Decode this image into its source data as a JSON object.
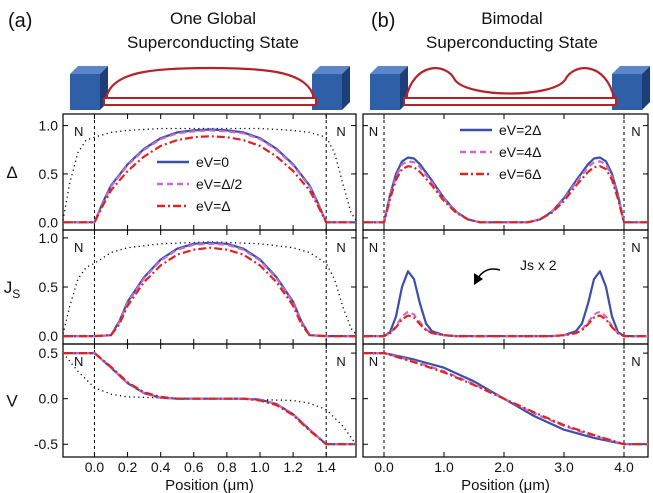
{
  "panels": [
    {
      "tag": "(a)",
      "title_lines": [
        "One Global",
        "Superconducting State"
      ],
      "xlabel": "Position (μm)",
      "xlim": [
        -0.19,
        1.58
      ],
      "xticks": [
        0.0,
        0.2,
        0.4,
        0.6,
        0.8,
        1.0,
        1.2,
        1.4
      ],
      "xtick_labels": [
        "0.0",
        "0.2",
        "0.4",
        "0.6",
        "0.8",
        "1.0",
        "1.2",
        "1.4"
      ],
      "region_label": "N",
      "annotation": ""
    },
    {
      "tag": "(b)",
      "title_lines": [
        "Bimodal",
        "Superconducting State"
      ],
      "xlabel": "Position (μm)",
      "xlim": [
        -0.35,
        4.4
      ],
      "xticks": [
        0.0,
        1.0,
        2.0,
        3.0,
        4.0
      ],
      "xtick_labels": [
        "0.0",
        "1.0",
        "2.0",
        "3.0",
        "4.0"
      ],
      "region_label": "N",
      "annotation": "Js x 2"
    }
  ],
  "rows": [
    {
      "ylabel": "Δ",
      "yticks": [
        0.0,
        0.5,
        1.0
      ],
      "ytick_labels": [
        "0.0",
        "0.5",
        "1.0"
      ],
      "ylim": [
        -0.08,
        1.12
      ]
    },
    {
      "ylabel": "J",
      "ylabel_sub": "S",
      "yticks": [
        0.0,
        0.5,
        1.0
      ],
      "ytick_labels": [
        "0.0",
        "0.5",
        "1.0"
      ],
      "ylim": [
        -0.08,
        1.08
      ]
    },
    {
      "ylabel": "V",
      "yticks": [
        -0.5,
        0.0,
        0.5
      ],
      "ytick_labels": [
        "-0.5",
        "0.0",
        "0.5"
      ],
      "ylim": [
        -0.64,
        0.6
      ]
    }
  ],
  "legends": [
    [
      "eV=0",
      "eV=Δ/2",
      "eV=Δ"
    ],
    [
      "eV=2Δ",
      "eV=4Δ",
      "eV=6Δ"
    ]
  ],
  "colors": {
    "solid": "#3a4fa8",
    "dashed": "#c76ad0",
    "dashdot": "#e0231e",
    "wire": "#b3242a",
    "lead": "#2f5fa6",
    "lead_dark": "#1d3f78"
  },
  "chart_data": [
    {
      "type": "line",
      "panel": "(a)",
      "row": "Δ",
      "series": [
        {
          "name": "eV=0",
          "x": [
            -0.19,
            0.0,
            0.05,
            0.1,
            0.2,
            0.3,
            0.4,
            0.5,
            0.6,
            0.7,
            0.8,
            0.9,
            1.0,
            1.1,
            1.2,
            1.3,
            1.35,
            1.4,
            1.58
          ],
          "values": [
            0.0,
            0.0,
            0.2,
            0.38,
            0.6,
            0.76,
            0.87,
            0.93,
            0.95,
            0.96,
            0.95,
            0.93,
            0.87,
            0.76,
            0.6,
            0.38,
            0.2,
            0.0,
            0.0
          ]
        },
        {
          "name": "eV=Δ/2",
          "x": [
            -0.19,
            0.0,
            0.05,
            0.1,
            0.2,
            0.3,
            0.4,
            0.5,
            0.6,
            0.7,
            0.8,
            0.9,
            1.0,
            1.1,
            1.2,
            1.3,
            1.35,
            1.4,
            1.58
          ],
          "values": [
            0.0,
            0.0,
            0.19,
            0.37,
            0.59,
            0.75,
            0.86,
            0.92,
            0.94,
            0.95,
            0.94,
            0.92,
            0.86,
            0.75,
            0.59,
            0.37,
            0.19,
            0.0,
            0.0
          ]
        },
        {
          "name": "eV=Δ",
          "x": [
            -0.19,
            0.0,
            0.05,
            0.1,
            0.2,
            0.3,
            0.4,
            0.5,
            0.6,
            0.7,
            0.8,
            0.9,
            1.0,
            1.1,
            1.2,
            1.3,
            1.35,
            1.4,
            1.58
          ],
          "values": [
            0.0,
            0.0,
            0.17,
            0.33,
            0.53,
            0.68,
            0.79,
            0.85,
            0.88,
            0.89,
            0.88,
            0.85,
            0.79,
            0.68,
            0.53,
            0.33,
            0.17,
            0.0,
            0.0
          ]
        },
        {
          "name": "",
          "x": [
            -0.19,
            -0.15,
            -0.1,
            -0.05,
            0.0,
            0.1,
            0.2,
            0.4,
            0.7,
            1.0,
            1.2,
            1.3,
            1.4,
            1.45,
            1.5,
            1.55,
            1.58
          ],
          "values": [
            0.02,
            0.4,
            0.72,
            0.85,
            0.88,
            0.93,
            0.95,
            0.97,
            0.97,
            0.97,
            0.95,
            0.93,
            0.88,
            0.72,
            0.4,
            0.1,
            0.02
          ]
        }
      ]
    },
    {
      "type": "line",
      "panel": "(a)",
      "row": "J_S",
      "series": [
        {
          "name": "eV=0",
          "x": [
            -0.19,
            0.0,
            0.1,
            0.15,
            0.2,
            0.3,
            0.4,
            0.5,
            0.6,
            0.7,
            0.8,
            0.9,
            1.0,
            1.1,
            1.2,
            1.25,
            1.3,
            1.4,
            1.58
          ],
          "values": [
            0.0,
            0.0,
            0.01,
            0.15,
            0.35,
            0.6,
            0.78,
            0.89,
            0.94,
            0.95,
            0.94,
            0.89,
            0.78,
            0.6,
            0.35,
            0.15,
            0.01,
            0.0,
            0.0
          ]
        },
        {
          "name": "eV=Δ/2",
          "x": [
            -0.19,
            0.0,
            0.1,
            0.15,
            0.2,
            0.3,
            0.4,
            0.5,
            0.6,
            0.7,
            0.8,
            0.9,
            1.0,
            1.1,
            1.2,
            1.25,
            1.3,
            1.4,
            1.58
          ],
          "values": [
            0.0,
            0.0,
            0.01,
            0.14,
            0.34,
            0.59,
            0.77,
            0.88,
            0.93,
            0.94,
            0.93,
            0.88,
            0.77,
            0.59,
            0.34,
            0.14,
            0.01,
            0.0,
            0.0
          ]
        },
        {
          "name": "eV=Δ",
          "x": [
            -0.19,
            0.0,
            0.1,
            0.15,
            0.2,
            0.3,
            0.4,
            0.5,
            0.6,
            0.7,
            0.8,
            0.9,
            1.0,
            1.1,
            1.2,
            1.25,
            1.3,
            1.4,
            1.58
          ],
          "values": [
            0.0,
            0.0,
            0.01,
            0.12,
            0.31,
            0.55,
            0.72,
            0.83,
            0.88,
            0.9,
            0.88,
            0.83,
            0.72,
            0.55,
            0.31,
            0.12,
            0.01,
            0.0,
            0.0
          ]
        },
        {
          "name": "",
          "x": [
            -0.19,
            -0.15,
            -0.1,
            -0.05,
            0.0,
            0.1,
            0.2,
            0.4,
            0.7,
            1.0,
            1.2,
            1.3,
            1.4,
            1.45,
            1.5,
            1.55,
            1.58
          ],
          "values": [
            0.02,
            0.3,
            0.58,
            0.7,
            0.74,
            0.85,
            0.9,
            0.94,
            0.96,
            0.94,
            0.9,
            0.85,
            0.74,
            0.58,
            0.3,
            0.08,
            0.02
          ]
        }
      ]
    },
    {
      "type": "line",
      "panel": "(a)",
      "row": "V",
      "series": [
        {
          "name": "eV=0",
          "x": [
            -0.19,
            0.0,
            0.1,
            0.2,
            0.3,
            0.4,
            0.5,
            0.6,
            0.7,
            0.8,
            0.9,
            1.0,
            1.1,
            1.2,
            1.3,
            1.4,
            1.58
          ],
          "values": [
            0.5,
            0.5,
            0.34,
            0.17,
            0.06,
            0.01,
            0.0,
            0.0,
            0.0,
            0.0,
            0.0,
            -0.01,
            -0.06,
            -0.17,
            -0.34,
            -0.5,
            -0.5
          ]
        },
        {
          "name": "eV=Δ/2",
          "x": [
            -0.19,
            0.0,
            0.1,
            0.2,
            0.3,
            0.4,
            0.5,
            0.6,
            0.7,
            0.8,
            0.9,
            1.0,
            1.1,
            1.2,
            1.3,
            1.4,
            1.58
          ],
          "values": [
            0.5,
            0.5,
            0.34,
            0.17,
            0.06,
            0.01,
            0.0,
            0.0,
            0.0,
            0.0,
            0.0,
            -0.01,
            -0.06,
            -0.17,
            -0.34,
            -0.5,
            -0.5
          ]
        },
        {
          "name": "eV=Δ",
          "x": [
            -0.19,
            0.0,
            0.1,
            0.2,
            0.3,
            0.4,
            0.5,
            0.6,
            0.7,
            0.8,
            0.9,
            1.0,
            1.1,
            1.2,
            1.3,
            1.4,
            1.58
          ],
          "values": [
            0.5,
            0.5,
            0.35,
            0.18,
            0.07,
            0.02,
            0.0,
            0.0,
            0.0,
            0.0,
            0.0,
            -0.02,
            -0.07,
            -0.18,
            -0.35,
            -0.5,
            -0.5
          ]
        },
        {
          "name": "",
          "x": [
            -0.19,
            -0.1,
            0.0,
            0.1,
            0.2,
            0.4,
            0.7,
            1.0,
            1.2,
            1.3,
            1.4,
            1.5,
            1.58
          ],
          "values": [
            0.5,
            0.3,
            0.12,
            0.05,
            0.02,
            0.01,
            0.0,
            -0.01,
            -0.02,
            -0.05,
            -0.12,
            -0.3,
            -0.5
          ]
        }
      ]
    },
    {
      "type": "line",
      "panel": "(b)",
      "row": "Δ",
      "series": [
        {
          "name": "eV=2Δ",
          "x": [
            -0.35,
            0.0,
            0.1,
            0.2,
            0.3,
            0.4,
            0.5,
            0.6,
            0.8,
            1.0,
            1.2,
            1.4,
            1.6,
            2.0,
            2.4,
            2.6,
            2.8,
            3.0,
            3.2,
            3.4,
            3.5,
            3.6,
            3.7,
            3.8,
            3.9,
            4.0,
            4.4
          ],
          "values": [
            0.0,
            0.0,
            0.28,
            0.5,
            0.63,
            0.67,
            0.66,
            0.6,
            0.43,
            0.25,
            0.11,
            0.03,
            0.0,
            0.0,
            0.0,
            0.03,
            0.11,
            0.25,
            0.43,
            0.6,
            0.66,
            0.67,
            0.63,
            0.5,
            0.28,
            0.0,
            0.0
          ]
        },
        {
          "name": "eV=4Δ",
          "x": [
            -0.35,
            0.0,
            0.1,
            0.2,
            0.3,
            0.4,
            0.5,
            0.6,
            0.8,
            1.0,
            1.2,
            1.4,
            1.6,
            2.0,
            2.4,
            2.6,
            2.8,
            3.0,
            3.2,
            3.4,
            3.5,
            3.6,
            3.7,
            3.8,
            3.9,
            4.0,
            4.4
          ],
          "values": [
            0.0,
            0.0,
            0.26,
            0.47,
            0.6,
            0.63,
            0.62,
            0.57,
            0.41,
            0.24,
            0.11,
            0.03,
            0.0,
            0.0,
            0.0,
            0.03,
            0.11,
            0.24,
            0.41,
            0.57,
            0.62,
            0.63,
            0.6,
            0.47,
            0.26,
            0.0,
            0.0
          ]
        },
        {
          "name": "eV=6Δ",
          "x": [
            -0.35,
            0.0,
            0.1,
            0.2,
            0.3,
            0.4,
            0.5,
            0.6,
            0.8,
            1.0,
            1.2,
            1.4,
            1.6,
            2.0,
            2.4,
            2.6,
            2.8,
            3.0,
            3.2,
            3.4,
            3.5,
            3.6,
            3.7,
            3.8,
            3.9,
            4.0,
            4.4
          ],
          "values": [
            0.0,
            0.0,
            0.24,
            0.44,
            0.55,
            0.58,
            0.57,
            0.52,
            0.38,
            0.22,
            0.1,
            0.03,
            0.0,
            0.0,
            0.0,
            0.03,
            0.1,
            0.22,
            0.38,
            0.52,
            0.57,
            0.58,
            0.55,
            0.44,
            0.24,
            0.0,
            0.0
          ]
        }
      ]
    },
    {
      "type": "line",
      "panel": "(b)",
      "row": "J_S",
      "series": [
        {
          "name": "eV=2Δ",
          "x": [
            -0.35,
            0.0,
            0.1,
            0.2,
            0.3,
            0.4,
            0.5,
            0.6,
            0.7,
            0.8,
            1.0,
            1.2,
            2.0,
            2.8,
            3.0,
            3.2,
            3.3,
            3.4,
            3.5,
            3.6,
            3.7,
            3.8,
            3.9,
            4.0,
            4.4
          ],
          "values": [
            0.0,
            0.0,
            0.04,
            0.2,
            0.5,
            0.66,
            0.58,
            0.33,
            0.13,
            0.05,
            0.01,
            0.0,
            0.0,
            0.0,
            0.01,
            0.05,
            0.13,
            0.33,
            0.58,
            0.66,
            0.5,
            0.2,
            0.04,
            0.0,
            0.0
          ]
        },
        {
          "name": "eV=4Δ",
          "x": [
            -0.35,
            0.0,
            0.1,
            0.2,
            0.3,
            0.4,
            0.5,
            0.6,
            0.7,
            0.8,
            1.0,
            1.2,
            2.0,
            2.8,
            3.0,
            3.2,
            3.3,
            3.4,
            3.5,
            3.6,
            3.7,
            3.8,
            3.9,
            4.0,
            4.4
          ],
          "values": [
            0.0,
            0.0,
            0.03,
            0.1,
            0.2,
            0.25,
            0.22,
            0.14,
            0.07,
            0.03,
            0.01,
            0.0,
            0.0,
            0.0,
            0.01,
            0.03,
            0.07,
            0.14,
            0.22,
            0.25,
            0.2,
            0.1,
            0.03,
            0.0,
            0.0
          ]
        },
        {
          "name": "eV=6Δ",
          "x": [
            -0.35,
            0.0,
            0.1,
            0.2,
            0.3,
            0.4,
            0.5,
            0.6,
            0.7,
            0.8,
            1.0,
            1.2,
            2.0,
            2.8,
            3.0,
            3.2,
            3.3,
            3.4,
            3.5,
            3.6,
            3.7,
            3.8,
            3.9,
            4.0,
            4.4
          ],
          "values": [
            0.0,
            0.0,
            0.03,
            0.09,
            0.17,
            0.21,
            0.19,
            0.12,
            0.06,
            0.03,
            0.01,
            0.0,
            0.0,
            0.0,
            0.01,
            0.03,
            0.06,
            0.12,
            0.19,
            0.21,
            0.17,
            0.09,
            0.03,
            0.0,
            0.0
          ]
        }
      ]
    },
    {
      "type": "line",
      "panel": "(b)",
      "row": "V",
      "series": [
        {
          "name": "eV=2Δ",
          "x": [
            -0.35,
            0.0,
            0.5,
            1.0,
            1.5,
            2.0,
            2.5,
            3.0,
            3.5,
            4.0,
            4.4
          ],
          "values": [
            0.5,
            0.5,
            0.43,
            0.34,
            0.19,
            0.0,
            -0.19,
            -0.34,
            -0.43,
            -0.5,
            -0.5
          ]
        },
        {
          "name": "eV=4Δ",
          "x": [
            -0.35,
            0.0,
            0.5,
            1.0,
            1.5,
            2.0,
            2.5,
            3.0,
            3.5,
            4.0,
            4.4
          ],
          "values": [
            0.5,
            0.5,
            0.41,
            0.3,
            0.16,
            0.0,
            -0.16,
            -0.3,
            -0.41,
            -0.5,
            -0.5
          ]
        },
        {
          "name": "eV=6Δ",
          "x": [
            -0.35,
            0.0,
            0.5,
            1.0,
            1.5,
            2.0,
            2.5,
            3.0,
            3.5,
            4.0,
            4.4
          ],
          "values": [
            0.5,
            0.5,
            0.4,
            0.29,
            0.15,
            0.0,
            -0.15,
            -0.29,
            -0.4,
            -0.5,
            -0.5
          ]
        }
      ]
    }
  ]
}
